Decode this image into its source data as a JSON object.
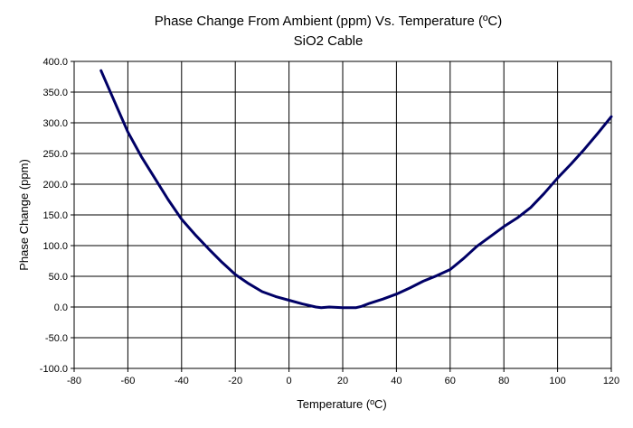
{
  "chart_data": {
    "type": "line",
    "title": "Phase Change From Ambient (ppm) Vs. Temperature (ºC)",
    "subtitle": "SiO2 Cable",
    "xlabel": "Temperature (ºC)",
    "ylabel": "Phase Change (ppm)",
    "xlim": [
      -80,
      120
    ],
    "ylim": [
      -100,
      400
    ],
    "xticks": [
      -80,
      -60,
      -40,
      -20,
      0,
      20,
      40,
      60,
      80,
      100,
      120
    ],
    "yticks": [
      -100,
      -50,
      0,
      50,
      100,
      150,
      200,
      250,
      300,
      350,
      400
    ],
    "xtick_labels": [
      "-80",
      "-60",
      "-40",
      "-20",
      "0",
      "20",
      "40",
      "60",
      "80",
      "100",
      "120"
    ],
    "ytick_labels": [
      "-100.0",
      "-50.0",
      "0.0",
      "50.0",
      "100.0",
      "150.0",
      "200.0",
      "250.0",
      "300.0",
      "350.0",
      "400.0"
    ],
    "grid": true,
    "legend": false,
    "series": [
      {
        "color": "#000066",
        "x": [
          -70,
          -65,
          -60,
          -55,
          -50,
          -45,
          -40,
          -35,
          -30,
          -25,
          -20,
          -15,
          -10,
          -5,
          0,
          5,
          10,
          12,
          15,
          20,
          25,
          27,
          30,
          35,
          40,
          45,
          50,
          55,
          60,
          65,
          70,
          75,
          80,
          85,
          90,
          95,
          100,
          105,
          110,
          115,
          120
        ],
        "y": [
          385,
          335,
          285,
          245,
          210,
          175,
          143,
          118,
          95,
          73,
          53,
          38,
          25,
          17,
          11,
          5,
          0,
          -1,
          0,
          -1,
          -1,
          1,
          6,
          13,
          21,
          31,
          42,
          51,
          61,
          79,
          99,
          115,
          131,
          145,
          162,
          185,
          210,
          233,
          257,
          283,
          310
        ]
      }
    ]
  }
}
